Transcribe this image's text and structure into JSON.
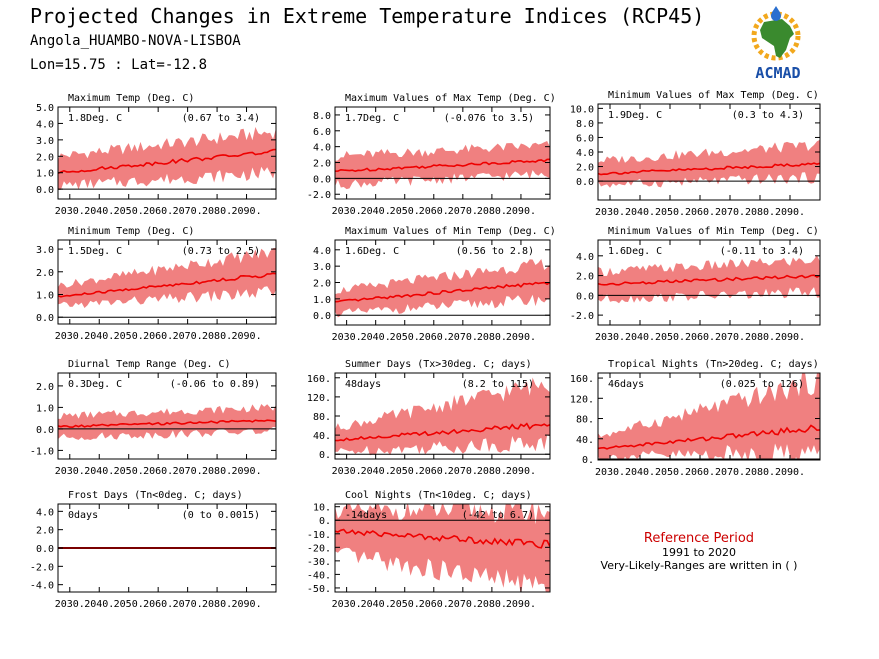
{
  "header": {
    "title": "Projected Changes in Extreme Temperature Indices (RCP45)",
    "location": "Angola_HUAMBO-NOVA-LISBOA",
    "coords": "Lon=15.75 : Lat=-12.8"
  },
  "logo": {
    "text": "ACMAD",
    "colors": {
      "africa": "#3a8a2e",
      "sun": "#f2a81d",
      "drop": "#2a6fcf",
      "text": "#1a4fa8"
    }
  },
  "colors": {
    "band": "#f08080",
    "line": "#ee0000",
    "zero": "#000000",
    "frost_line": "#7a0000"
  },
  "x_ticks": [
    "2030.",
    "2040.",
    "2050.",
    "2060.",
    "2070.",
    "2080.",
    "2090."
  ],
  "reference": {
    "title": "Reference Period",
    "years": "1991 to 2020",
    "note": "Very-Likely-Ranges are written in ( )"
  },
  "chart_data": [
    {
      "type": "area",
      "title": "Maximum Temp (Deg. C)",
      "change": "1.8Deg. C",
      "range": "(0.67 to 3.4)",
      "ylim": [
        -0.6,
        5.0
      ],
      "yticks": [
        5.0,
        4.0,
        3.0,
        2.0,
        1.0,
        0.0
      ],
      "ytick_labels": [
        "5.0",
        "4.0",
        "3.0",
        "2.0",
        "1.0",
        "0.0"
      ],
      "x_range": [
        2026,
        2100
      ],
      "mean_start": 1.0,
      "mean_end": 2.3,
      "band_start": [
        0.2,
        2.0
      ],
      "band_end": [
        1.0,
        3.5
      ]
    },
    {
      "type": "area",
      "title": "Maximum Values of Max Temp (Deg. C)",
      "change": "1.7Deg. C",
      "range": "(-0.076 to 3.5)",
      "ylim": [
        -2.6,
        9.0
      ],
      "yticks": [
        8.0,
        6.0,
        4.0,
        2.0,
        0.0,
        -2.0
      ],
      "ytick_labels": [
        "8.0",
        "6.0",
        "4.0",
        "2.0",
        "0.0",
        "-2.0"
      ],
      "x_range": [
        2026,
        2100
      ],
      "mean_start": 0.9,
      "mean_end": 2.3,
      "band_start": [
        -0.8,
        2.8
      ],
      "band_end": [
        0.6,
        4.2
      ]
    },
    {
      "type": "area",
      "title": "Minimum Values of Max Temp (Deg. C)",
      "change": "1.9Deg. C",
      "range": "(0.3 to 4.3)",
      "ylim": [
        -2.6,
        10.6
      ],
      "yticks": [
        10.0,
        8.0,
        6.0,
        4.0,
        2.0,
        0.0
      ],
      "ytick_labels": [
        "10.0",
        "8.0",
        "6.0",
        "4.0",
        "2.0",
        "0.0"
      ],
      "x_range": [
        2026,
        2100
      ],
      "mean_start": 1.0,
      "mean_end": 2.4,
      "band_start": [
        -0.5,
        2.8
      ],
      "band_end": [
        0.5,
        5.0
      ]
    },
    {
      "type": "area",
      "title": "Minimum Temp (Deg. C)",
      "change": "1.5Deg. C",
      "range": "(0.73 to 2.5)",
      "ylim": [
        -0.3,
        3.4
      ],
      "yticks": [
        3.0,
        2.0,
        1.0,
        0.0
      ],
      "ytick_labels": [
        "3.0",
        "2.0",
        "1.0",
        "0.0"
      ],
      "x_range": [
        2026,
        2100
      ],
      "mean_start": 0.9,
      "mean_end": 1.9,
      "band_start": [
        0.5,
        1.4
      ],
      "band_end": [
        1.1,
        2.9
      ]
    },
    {
      "type": "area",
      "title": "Maximum Values of Min Temp (Deg. C)",
      "change": "1.6Deg. C",
      "range": "(0.56 to 2.8)",
      "ylim": [
        -0.6,
        4.6
      ],
      "yticks": [
        4.0,
        3.0,
        2.0,
        1.0,
        0.0
      ],
      "ytick_labels": [
        "4.0",
        "3.0",
        "2.0",
        "1.0",
        "0.0"
      ],
      "x_range": [
        2026,
        2100
      ],
      "mean_start": 0.8,
      "mean_end": 2.0,
      "band_start": [
        0.1,
        1.5
      ],
      "band_end": [
        1.0,
        3.2
      ]
    },
    {
      "type": "area",
      "title": "Minimum Values of Min Temp (Deg. C)",
      "change": "1.6Deg. C",
      "range": "(-0.11 to 3.4)",
      "ylim": [
        -3.0,
        5.6
      ],
      "yticks": [
        4.0,
        2.0,
        0.0,
        -2.0
      ],
      "ytick_labels": [
        "4.0",
        "2.0",
        "0.0",
        "-2.0"
      ],
      "x_range": [
        2026,
        2100
      ],
      "mean_start": 1.1,
      "mean_end": 2.0,
      "band_start": [
        -0.4,
        2.4
      ],
      "band_end": [
        0.3,
        3.6
      ]
    },
    {
      "type": "area",
      "title": "Diurnal Temp Range (Deg. C)",
      "change": "0.3Deg. C",
      "range": "(-0.06 to 0.89)",
      "ylim": [
        -1.4,
        2.6
      ],
      "yticks": [
        2.0,
        1.0,
        0.0,
        -1.0
      ],
      "ytick_labels": [
        "2.0",
        "1.0",
        "0.0",
        "-1.0"
      ],
      "x_range": [
        2026,
        2100
      ],
      "mean_start": 0.1,
      "mean_end": 0.4,
      "band_start": [
        -0.4,
        0.6
      ],
      "band_end": [
        -0.1,
        1.0
      ]
    },
    {
      "type": "area",
      "title": "Summer Days (Tx>30deg. C; days)",
      "change": "48days",
      "range": "(8.2 to 115)",
      "ylim": [
        -10,
        170
      ],
      "yticks": [
        160,
        120,
        80,
        40,
        0
      ],
      "ytick_labels": [
        "160.",
        "120.",
        "80.",
        "40.",
        "0."
      ],
      "x_range": [
        2026,
        2100
      ],
      "mean_start": 30,
      "mean_end": 62,
      "band_start": [
        5,
        55
      ],
      "band_end": [
        25,
        150
      ]
    },
    {
      "type": "area",
      "title": "Tropical Nights (Tn>20deg. C; days)",
      "change": "46days",
      "range": "(0.025 to 126)",
      "ylim": [
        -2,
        170
      ],
      "yticks": [
        160,
        120,
        80,
        40,
        0
      ],
      "ytick_labels": [
        "160.",
        "120.",
        "80.",
        "40.",
        "0."
      ],
      "x_range": [
        2026,
        2100
      ],
      "mean_start": 20,
      "mean_end": 62,
      "band_start": [
        3,
        45
      ],
      "band_end": [
        15,
        155
      ]
    },
    {
      "type": "area",
      "title": "Frost Days (Tn<0deg. C; days)",
      "change": "0days",
      "range": "(0 to 0.0015)",
      "ylim": [
        -4.8,
        4.8
      ],
      "yticks": [
        4.0,
        2.0,
        0.0,
        -2.0,
        -4.0
      ],
      "ytick_labels": [
        "4.0",
        "2.0",
        "0.0",
        "-2.0",
        "-4.0"
      ],
      "x_range": [
        2026,
        2100
      ],
      "mean_start": 0,
      "mean_end": 0,
      "band_start": [
        0,
        0
      ],
      "band_end": [
        0,
        0
      ]
    },
    {
      "type": "area",
      "title": "Cool Nights (Tn<10deg. C; days)",
      "change": "-14days",
      "range": "(-42 to 6.7)",
      "ylim": [
        -53,
        12
      ],
      "yticks": [
        10,
        0,
        -10,
        -20,
        -30,
        -40,
        -50
      ],
      "ytick_labels": [
        "10.",
        "0.",
        "-10.",
        "-20.",
        "-30.",
        "-40.",
        "-50."
      ],
      "x_range": [
        2026,
        2100
      ],
      "mean_start": -8,
      "mean_end": -18,
      "band_start": [
        -25,
        7
      ],
      "band_end": [
        -50,
        7
      ]
    }
  ]
}
